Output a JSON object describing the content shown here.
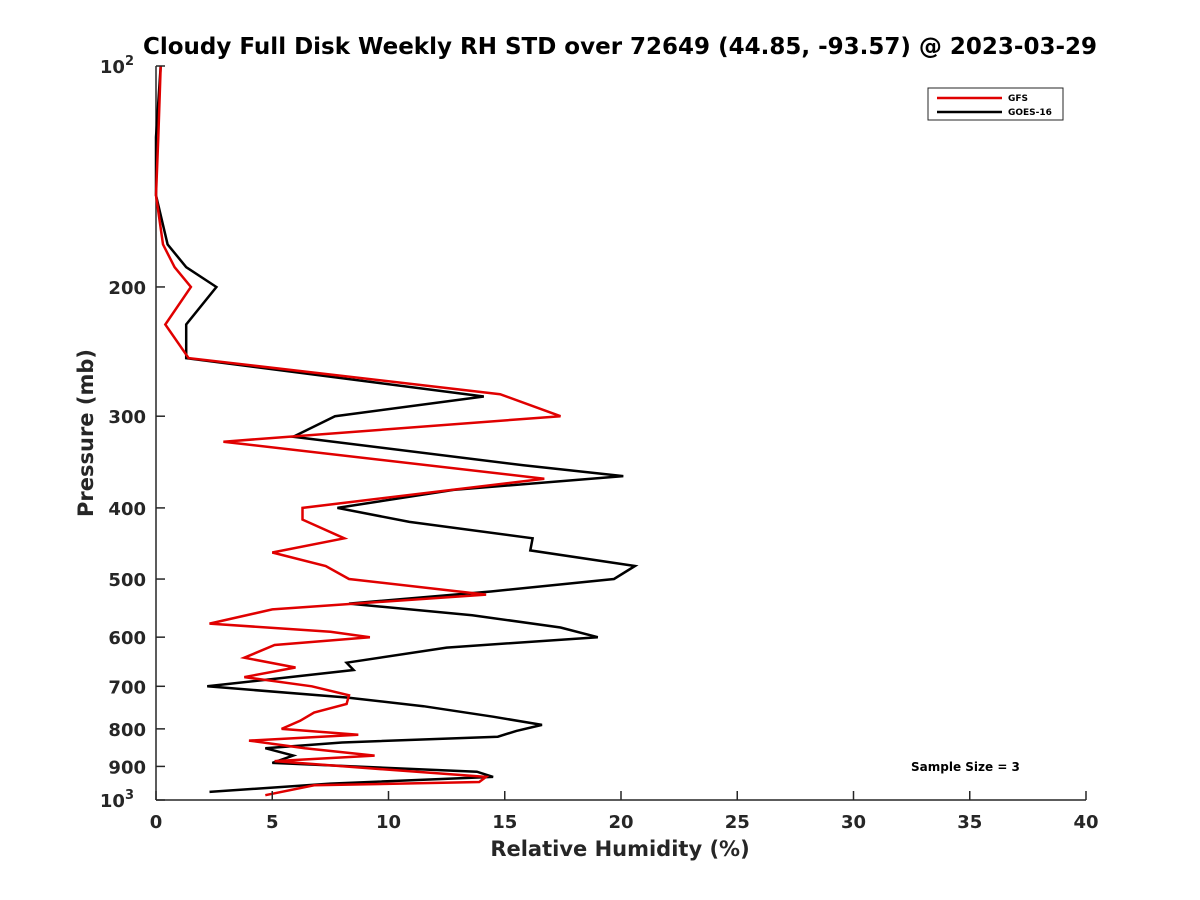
{
  "chart_data": {
    "type": "line",
    "title": "Cloudy Full Disk Weekly RH STD over 72649 (44.85, -93.57) @ 2023-03-29",
    "xlabel": "Relative Humidity (%)",
    "ylabel": "Pressure (mb)",
    "xlim": [
      0,
      40
    ],
    "ylim": [
      100,
      1000
    ],
    "yscale": "log",
    "y_reversed": true,
    "xticks": [
      "0",
      "5",
      "10",
      "15",
      "20",
      "25",
      "30",
      "35",
      "40"
    ],
    "yticks": [
      {
        "value": 100,
        "label": "10",
        "sup": "2"
      },
      {
        "value": 200,
        "label": "200",
        "sup": ""
      },
      {
        "value": 300,
        "label": "300",
        "sup": ""
      },
      {
        "value": 400,
        "label": "400",
        "sup": ""
      },
      {
        "value": 500,
        "label": "500",
        "sup": ""
      },
      {
        "value": 600,
        "label": "600",
        "sup": ""
      },
      {
        "value": 700,
        "label": "700",
        "sup": ""
      },
      {
        "value": 800,
        "label": "800",
        "sup": ""
      },
      {
        "value": 900,
        "label": "900",
        "sup": ""
      },
      {
        "value": 1000,
        "label": "10",
        "sup": "3"
      }
    ],
    "grid": false,
    "legend_position": "top-right",
    "annotation": "Sample Size = 3",
    "series": [
      {
        "name": "GFS",
        "color": "#e00000",
        "points": [
          [
            0.2,
            100
          ],
          [
            0.1,
            125
          ],
          [
            0.0,
            150
          ],
          [
            0.3,
            175
          ],
          [
            0.8,
            188
          ],
          [
            1.5,
            200
          ],
          [
            0.4,
            225
          ],
          [
            1.4,
            250
          ],
          [
            14.8,
            280
          ],
          [
            17.4,
            300
          ],
          [
            2.9,
            325
          ],
          [
            16.7,
            365
          ],
          [
            6.3,
            400
          ],
          [
            6.3,
            415
          ],
          [
            8.1,
            440
          ],
          [
            5.0,
            460
          ],
          [
            7.3,
            480
          ],
          [
            8.3,
            500
          ],
          [
            14.2,
            525
          ],
          [
            5.0,
            550
          ],
          [
            2.3,
            575
          ],
          [
            7.5,
            590
          ],
          [
            9.2,
            600
          ],
          [
            5.1,
            615
          ],
          [
            3.8,
            640
          ],
          [
            6.0,
            660
          ],
          [
            3.8,
            680
          ],
          [
            6.7,
            700
          ],
          [
            8.3,
            720
          ],
          [
            8.2,
            740
          ],
          [
            6.8,
            760
          ],
          [
            6.2,
            780
          ],
          [
            5.4,
            800
          ],
          [
            8.7,
            815
          ],
          [
            4.0,
            830
          ],
          [
            6.4,
            850
          ],
          [
            9.4,
            870
          ],
          [
            5.1,
            885
          ],
          [
            8.1,
            900
          ],
          [
            14.2,
            930
          ],
          [
            13.9,
            945
          ],
          [
            6.8,
            955
          ],
          [
            4.7,
            985
          ]
        ]
      },
      {
        "name": "GOES-16",
        "color": "#000000",
        "points": [
          [
            0.2,
            100
          ],
          [
            0.0,
            125
          ],
          [
            0.0,
            150
          ],
          [
            0.5,
            175
          ],
          [
            1.3,
            188
          ],
          [
            2.6,
            200
          ],
          [
            1.3,
            225
          ],
          [
            1.3,
            250
          ],
          [
            14.1,
            282
          ],
          [
            7.7,
            300
          ],
          [
            5.9,
            320
          ],
          [
            15.8,
            350
          ],
          [
            20.1,
            362
          ],
          [
            12.8,
            378
          ],
          [
            7.8,
            400
          ],
          [
            10.9,
            418
          ],
          [
            16.2,
            440
          ],
          [
            16.1,
            457
          ],
          [
            20.6,
            480
          ],
          [
            19.7,
            500
          ],
          [
            14.4,
            520
          ],
          [
            8.3,
            540
          ],
          [
            13.6,
            560
          ],
          [
            17.4,
            582
          ],
          [
            19.0,
            600
          ],
          [
            12.5,
            620
          ],
          [
            8.2,
            650
          ],
          [
            8.5,
            665
          ],
          [
            2.2,
            700
          ],
          [
            8.2,
            725
          ],
          [
            11.5,
            745
          ],
          [
            14.5,
            770
          ],
          [
            16.6,
            790
          ],
          [
            15.5,
            805
          ],
          [
            14.7,
            820
          ],
          [
            8.0,
            835
          ],
          [
            4.7,
            850
          ],
          [
            5.9,
            870
          ],
          [
            5.0,
            890
          ],
          [
            13.8,
            915
          ],
          [
            14.5,
            930
          ],
          [
            7.5,
            950
          ],
          [
            2.3,
            975
          ]
        ]
      }
    ]
  }
}
